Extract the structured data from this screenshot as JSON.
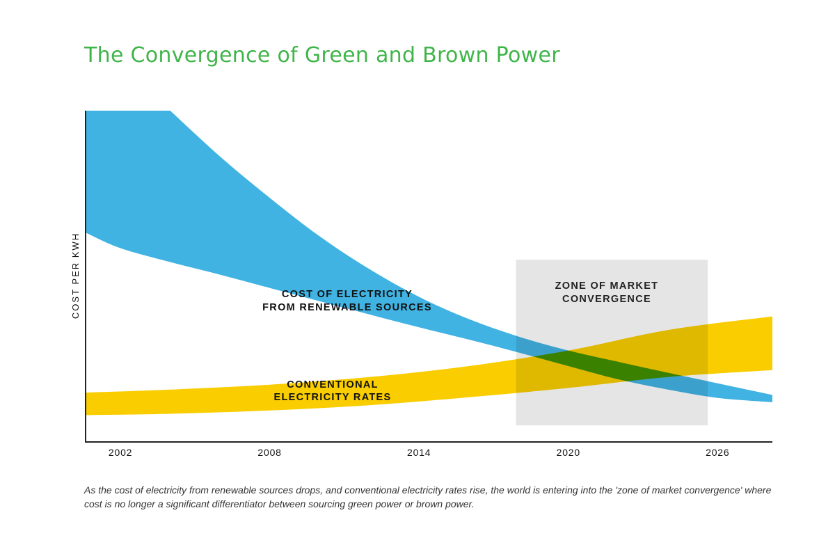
{
  "page": {
    "title": "The Convergence of Green and Brown Power",
    "caption": "As the cost of electricity from renewable sources drops, and conventional electricity rates rise, the world is entering into the 'zone of market convergence' where cost is no longer a significant differentiator between sourcing green power or brown power."
  },
  "chart_data": {
    "type": "area",
    "title": "The Convergence of Green and Brown Power",
    "ylabel": "COST PER KWH",
    "xlabel": "",
    "x_ticks": [
      2002,
      2008,
      2014,
      2020,
      2026
    ],
    "xlim": [
      2000.6,
      2028.2
    ],
    "ylim": [
      0,
      100
    ],
    "series": [
      {
        "name": "COST OF ELECTRICITY FROM RENEWABLE SOURCES",
        "label_lines": [
          "COST OF ELECTRICITY",
          "FROM RENEWABLE SOURCES"
        ],
        "color": "#41b3e3",
        "upper": [
          [
            2000.6,
            100
          ],
          [
            2004.0,
            100
          ],
          [
            2006,
            86.2
          ],
          [
            2008,
            73.7
          ],
          [
            2010,
            62.1
          ],
          [
            2012,
            52.2
          ],
          [
            2014,
            43.8
          ],
          [
            2016,
            37.1
          ],
          [
            2018,
            31.8
          ],
          [
            2020,
            27.6
          ],
          [
            2022,
            24.2
          ],
          [
            2024,
            20.9
          ],
          [
            2026,
            17.7
          ],
          [
            2028.2,
            14.2
          ]
        ],
        "lower": [
          [
            2000.6,
            63.2
          ],
          [
            2002,
            58.5
          ],
          [
            2004,
            54.3
          ],
          [
            2006,
            50.5
          ],
          [
            2008,
            46.5
          ],
          [
            2010,
            42.5
          ],
          [
            2012,
            38.5
          ],
          [
            2014,
            34.6
          ],
          [
            2016,
            30.9
          ],
          [
            2018,
            27.0
          ],
          [
            2020,
            22.9
          ],
          [
            2022,
            18.9
          ],
          [
            2024,
            15.8
          ],
          [
            2026,
            13.3
          ],
          [
            2028.2,
            12.0
          ]
        ]
      },
      {
        "name": "CONVENTIONAL ELECTRICITY RATES",
        "label_lines": [
          "CONVENTIONAL",
          "ELECTRICITY RATES"
        ],
        "color": "#f9cd00",
        "upper": [
          [
            2000.6,
            14.9
          ],
          [
            2004,
            15.8
          ],
          [
            2008,
            17.3
          ],
          [
            2012,
            19.6
          ],
          [
            2016,
            22.9
          ],
          [
            2020,
            27.6
          ],
          [
            2024,
            33.8
          ],
          [
            2028.2,
            37.9
          ]
        ],
        "lower": [
          [
            2000.6,
            8.1
          ],
          [
            2004,
            8.5
          ],
          [
            2008,
            9.5
          ],
          [
            2012,
            11.1
          ],
          [
            2016,
            13.5
          ],
          [
            2020,
            16.3
          ],
          [
            2024,
            19.6
          ],
          [
            2028.2,
            21.7
          ]
        ]
      }
    ],
    "annotations": [
      {
        "label_lines": [
          "ZONE OF MARKET",
          "CONVERGENCE"
        ],
        "x_range": [
          2017.9,
          2025.6
        ],
        "y_range": [
          5.0,
          55.0
        ],
        "color": "#d5d5d5"
      }
    ],
    "grid": false,
    "legend": "none"
  }
}
